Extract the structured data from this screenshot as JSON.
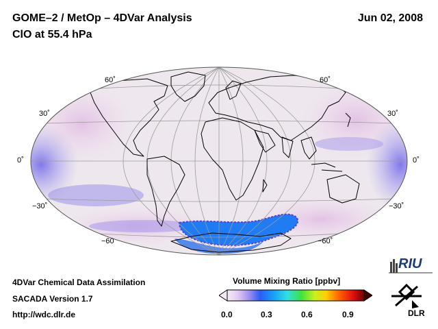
{
  "header": {
    "title_line1": "GOME–2 / MetOp – 4DVar Analysis",
    "title_line2": "ClO at 55.4 hPa",
    "date": "Jun 02, 2008"
  },
  "map": {
    "projection": "hammer-aitoff",
    "latitude_labels_left": [
      "60˚",
      "30˚",
      "0˚",
      "−30˚",
      "−60"
    ],
    "latitude_labels_right": [
      "60˚",
      "30˚",
      "0˚",
      "−30˚",
      "−60˚"
    ],
    "colors": {
      "background_field": "#efe9ee",
      "low_band": "#8a7be8",
      "polar_vortex": "#1e78f0",
      "coast": "#000000"
    }
  },
  "colorbar": {
    "title": "Volume Mixing Ratio [ppbv]",
    "ticks": [
      "0.0",
      "0.3",
      "0.6",
      "0.9"
    ],
    "range": [
      0.0,
      1.0
    ]
  },
  "footer": {
    "line1": "4DVar Chemical Data Assimilation",
    "line2": "SACADA Version 1.7",
    "line3": "http://wdc.dlr.de"
  },
  "logos": {
    "riu": "RIU",
    "dlr": "DLR"
  }
}
